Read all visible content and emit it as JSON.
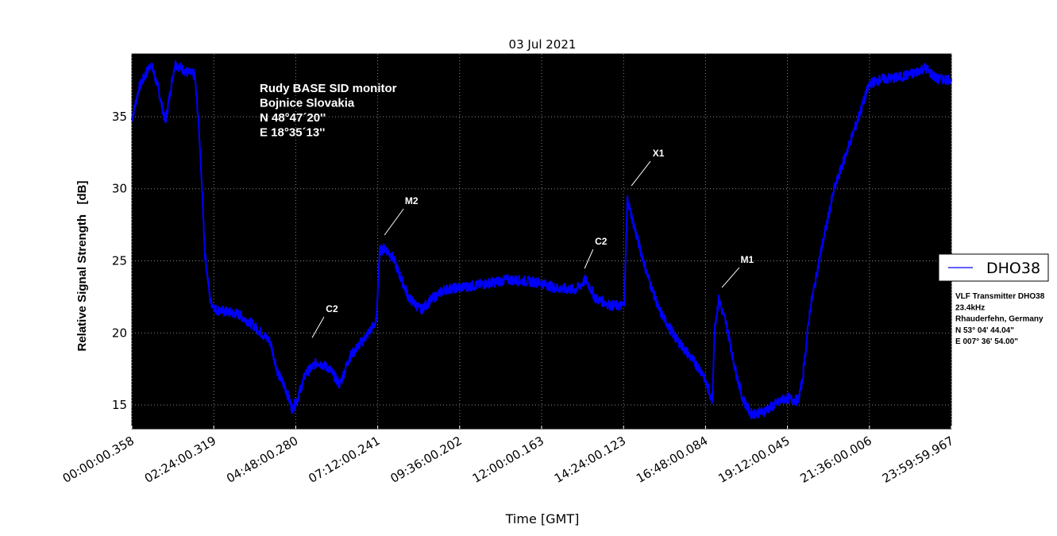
{
  "chart_data": {
    "type": "line",
    "title": "03 Jul 2021",
    "xlabel": "Time [GMT]",
    "ylabel": "Relative Signal Strength   [dB]",
    "xlim": [
      0,
      24
    ],
    "ylim": [
      13.35,
      39.35
    ],
    "grid": true,
    "x_unit": "hours GMT",
    "xticks": [
      0,
      2.4,
      4.8,
      7.2,
      9.6,
      12.0,
      14.4,
      16.8,
      19.2,
      21.6,
      24.0
    ],
    "xtick_labels": [
      "00:00:00.358",
      "02:24:00.319",
      "04:48:00.280",
      "07:12:00.241",
      "09:36:00.202",
      "12:00:00.163",
      "14:24:00.123",
      "16:48:00.084",
      "19:12:00.045",
      "21:36:00.006",
      "23:59:59.967"
    ],
    "yticks": [
      15,
      20,
      25,
      30,
      35
    ],
    "ytick_labels": [
      "15",
      "20",
      "25",
      "30",
      "35"
    ],
    "legend": {
      "placement": "right-outside",
      "entries": [
        "DHO38"
      ]
    },
    "series": [
      {
        "name": "DHO38",
        "color": "#0000ff",
        "x": [
          0,
          0.21,
          0.56,
          0.79,
          0.98,
          1.26,
          1.6,
          1.84,
          1.95,
          2.07,
          2.14,
          2.3,
          2.47,
          3.12,
          3.58,
          4.05,
          4.28,
          4.51,
          4.7,
          4.86,
          5.09,
          5.44,
          5.79,
          6.09,
          6.37,
          6.84,
          7.16,
          7.26,
          7.42,
          7.65,
          7.88,
          8.12,
          8.47,
          8.81,
          9.16,
          10.09,
          11.02,
          11.95,
          12.42,
          13.0,
          13.3,
          13.58,
          14.05,
          14.42,
          14.51,
          14.74,
          15.09,
          15.44,
          15.91,
          16.37,
          16.72,
          17.0,
          17.07,
          17.19,
          17.42,
          17.65,
          17.88,
          18.12,
          18.47,
          18.81,
          19.16,
          19.51,
          19.63,
          19.86,
          20.21,
          20.56,
          20.91,
          21.26,
          21.6,
          21.95,
          22.42,
          22.88,
          23.23,
          23.58,
          24
        ],
        "y": [
          34.8,
          37.0,
          38.7,
          36.8,
          34.6,
          38.7,
          38.1,
          37.9,
          34.8,
          29.3,
          25.5,
          22.2,
          21.6,
          21.3,
          20.5,
          19.4,
          17.2,
          16.1,
          14.7,
          15.5,
          17.2,
          18.0,
          17.5,
          16.4,
          18.3,
          19.7,
          20.8,
          25.7,
          25.9,
          25.2,
          23.8,
          22.4,
          21.6,
          22.4,
          23.0,
          23.3,
          23.7,
          23.5,
          23.1,
          23.0,
          23.7,
          22.4,
          21.9,
          21.9,
          29.3,
          27.1,
          24.1,
          21.6,
          19.7,
          18.3,
          17.2,
          15.3,
          20.5,
          22.3,
          20.5,
          17.7,
          15.5,
          14.4,
          14.5,
          15.0,
          15.5,
          15.3,
          16.6,
          21.6,
          26.0,
          29.9,
          32.4,
          34.8,
          37.3,
          37.6,
          37.7,
          38.0,
          38.4,
          37.6,
          37.6
        ]
      }
    ],
    "annotations": [
      {
        "text": "C2",
        "point": [
          5.28,
          19.67
        ],
        "text_pos": [
          5.86,
          21.66
        ]
      },
      {
        "text": "M2",
        "point": [
          7.4,
          26.79
        ],
        "text_pos": [
          8.19,
          29.16
        ]
      },
      {
        "text": "C2",
        "point": [
          13.26,
          24.47
        ],
        "text_pos": [
          13.74,
          26.35
        ]
      },
      {
        "text": "X1",
        "point": [
          14.63,
          30.2
        ],
        "text_pos": [
          15.42,
          32.46
        ]
      },
      {
        "text": "M1",
        "point": [
          17.28,
          23.15
        ],
        "text_pos": [
          18.02,
          25.08
        ]
      }
    ],
    "station_info": [
      "Rudy BASE SID monitor",
      "Bojnice Slovakia",
      "N 48°47´20''",
      "E 18°35´13''"
    ],
    "transmitter_info": [
      "VLF Transmitter DHO38",
      "23.4kHz",
      "Rhauderfehn, Germany",
      "N 53° 04' 44.04\"",
      "E 007° 36' 54.00\""
    ]
  }
}
